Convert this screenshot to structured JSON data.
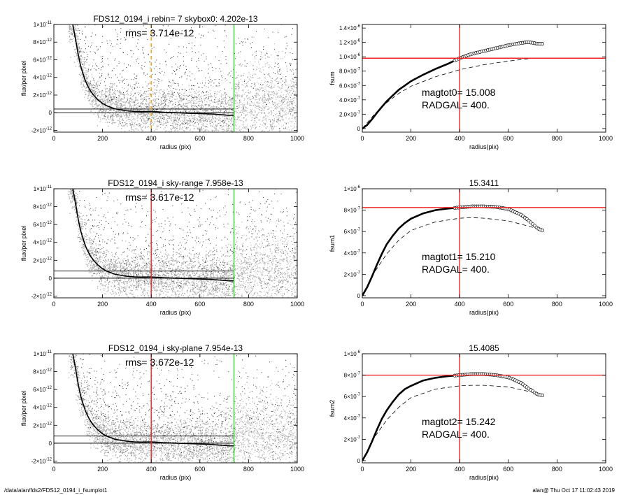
{
  "footer": {
    "path": "/data/alan/fds2/FDS12_0194_i_fsumplot1",
    "stamp": "alan@  Thu Oct 17 11:02:43 2019"
  },
  "chart_data": [
    {
      "type": "scatter",
      "title": "FDS12_0194_i rebin= 7    skybox0:  4.202e-13",
      "annotation": "rms= 3.714e-12",
      "xlabel": "radius (pix)",
      "ylabel": "flux/per pixel",
      "xlim": [
        0,
        1000
      ],
      "ylim": [
        -2.2e-12,
        1e-11
      ],
      "xticks": [
        0,
        200,
        400,
        600,
        800,
        1000
      ],
      "yticks": [
        {
          "v": -2e-12,
          "m": "-2×10",
          "e": "-12"
        },
        {
          "v": 0,
          "m": "0",
          "e": ""
        },
        {
          "v": 2e-12,
          "m": "2×10",
          "e": "-12"
        },
        {
          "v": 4e-12,
          "m": "4×10",
          "e": "-12"
        },
        {
          "v": 6e-12,
          "m": "6×10",
          "e": "-12"
        },
        {
          "v": 8e-12,
          "m": "8×10",
          "e": "-12"
        },
        {
          "v": 1e-11,
          "m": "1×10",
          "e": "-11"
        }
      ],
      "hlines": [
        0,
        4.2e-13
      ],
      "vlines": [
        {
          "x": 400,
          "color": "#ff9900",
          "style": "dashed"
        },
        {
          "x": 740,
          "color": "#33cc33",
          "style": "solid"
        }
      ],
      "profile": {
        "x": [
          78,
          90,
          100,
          110,
          120,
          130,
          140,
          150,
          160,
          170,
          180,
          200,
          220,
          250,
          280,
          300,
          330,
          360,
          400,
          450,
          500,
          550,
          600,
          650,
          700,
          720,
          740
        ],
        "y": [
          1e-11,
          8.2e-12,
          6.6e-12,
          5.3e-12,
          4.4e-12,
          3.6e-12,
          3e-12,
          2.5e-12,
          2.1e-12,
          1.8e-12,
          1.5e-12,
          1.05e-12,
          7.5e-13,
          4.5e-13,
          3e-13,
          2.2e-13,
          1.5e-13,
          1.2e-13,
          1.5e-13,
          5e-14,
          0,
          -5e-14,
          -1e-13,
          -1.5e-13,
          -2.5e-13,
          -3e-13,
          -3e-13
        ]
      }
    },
    {
      "type": "line",
      "title": "",
      "annotation": [
        "magtot0=  15.008",
        "RADGAL=    400."
      ],
      "xlabel": "radius(pix)",
      "ylabel": "fsum",
      "xlim": [
        0,
        1000
      ],
      "ylim": [
        -5e-08,
        1.45e-06
      ],
      "xticks": [
        0,
        200,
        400,
        600,
        800,
        1000
      ],
      "yticks": [
        {
          "v": 0,
          "m": "0",
          "e": ""
        },
        {
          "v": 2e-07,
          "m": "2.0×10",
          "e": "-7"
        },
        {
          "v": 4e-07,
          "m": "4.0×10",
          "e": "-7"
        },
        {
          "v": 6e-07,
          "m": "6.0×10",
          "e": "-7"
        },
        {
          "v": 8e-07,
          "m": "8.0×10",
          "e": "-7"
        },
        {
          "v": 1e-06,
          "m": "1.0×10",
          "e": "-6"
        },
        {
          "v": 1.2e-06,
          "m": "1.2×10",
          "e": "-6"
        },
        {
          "v": 1.4e-06,
          "m": "1.4×10",
          "e": "-6"
        }
      ],
      "cross": {
        "x": 400,
        "y": 9.8e-07
      },
      "curve": {
        "x": [
          0,
          20,
          40,
          60,
          80,
          100,
          125,
          150,
          175,
          200,
          250,
          300,
          350,
          400,
          450,
          500,
          550,
          600,
          650,
          680,
          700,
          720,
          740
        ],
        "y": [
          0,
          5e-08,
          1.3e-07,
          2.2e-07,
          3e-07,
          3.8e-07,
          4.6e-07,
          5.4e-07,
          6e-07,
          6.6e-07,
          7.5e-07,
          8.3e-07,
          9e-07,
          9.8e-07,
          1.04e-06,
          1.08e-06,
          1.12e-06,
          1.16e-06,
          1.19e-06,
          1.205e-06,
          1.195e-06,
          1.18e-06,
          1.18e-06
        ]
      },
      "dashed": {
        "x": [
          0,
          50,
          100,
          150,
          200,
          300,
          400,
          500,
          600,
          700,
          740
        ],
        "y": [
          0,
          2e-07,
          3.6e-07,
          4.9e-07,
          5.9e-07,
          7.2e-07,
          8.2e-07,
          8.9e-07,
          9.4e-07,
          9.8e-07,
          9.8e-07
        ]
      }
    },
    {
      "type": "scatter",
      "title": "FDS12_0194_i sky-range  7.958e-13",
      "annotation": "rms= 3.617e-12",
      "xlabel": "radius (pix)",
      "ylabel": "flux/per pixel",
      "xlim": [
        0,
        1000
      ],
      "ylim": [
        -2.2e-12,
        1e-11
      ],
      "xticks": [
        0,
        200,
        400,
        600,
        800,
        1000
      ],
      "yticks": [
        {
          "v": -2e-12,
          "m": "-2×10",
          "e": "-12"
        },
        {
          "v": 0,
          "m": "0",
          "e": ""
        },
        {
          "v": 2e-12,
          "m": "2×10",
          "e": "-12"
        },
        {
          "v": 4e-12,
          "m": "4×10",
          "e": "-12"
        },
        {
          "v": 6e-12,
          "m": "6×10",
          "e": "-12"
        },
        {
          "v": 8e-12,
          "m": "8×10",
          "e": "-12"
        },
        {
          "v": 1e-11,
          "m": "1×10",
          "e": "-11"
        }
      ],
      "hlines": [
        0,
        7.958e-13
      ],
      "vlines": [
        {
          "x": 400,
          "color": "#ee2222",
          "style": "solid"
        },
        {
          "x": 740,
          "color": "#33cc33",
          "style": "solid"
        }
      ],
      "profile": {
        "x": [
          78,
          90,
          100,
          110,
          120,
          130,
          140,
          150,
          160,
          170,
          180,
          200,
          220,
          250,
          280,
          300,
          330,
          360,
          400,
          450,
          500,
          550,
          600,
          650,
          700,
          720,
          740
        ],
        "y": [
          1e-11,
          8.2e-12,
          6.6e-12,
          5.3e-12,
          4.4e-12,
          3.6e-12,
          3e-12,
          2.5e-12,
          2.1e-12,
          1.8e-12,
          1.5e-12,
          1.05e-12,
          7.5e-13,
          4.5e-13,
          3e-13,
          2.2e-13,
          1.5e-13,
          1.2e-13,
          1.5e-13,
          5e-14,
          0,
          -5e-14,
          -1e-13,
          -1.5e-13,
          -2.5e-13,
          -3e-13,
          -3e-13
        ]
      }
    },
    {
      "type": "line",
      "title": "15.3411",
      "annotation": [
        "magtot1=  15.210",
        "RADGAL=    400."
      ],
      "xlabel": "radius(pix)",
      "ylabel": "fsum1",
      "xlim": [
        0,
        1000
      ],
      "ylim": [
        -2e-08,
        1e-06
      ],
      "xticks": [
        0,
        200,
        400,
        600,
        800,
        1000
      ],
      "yticks": [
        {
          "v": 0,
          "m": "0",
          "e": ""
        },
        {
          "v": 2e-07,
          "m": "2×10",
          "e": "-7"
        },
        {
          "v": 4e-07,
          "m": "4×10",
          "e": "-7"
        },
        {
          "v": 6e-07,
          "m": "6×10",
          "e": "-7"
        },
        {
          "v": 8e-07,
          "m": "8×10",
          "e": "-7"
        },
        {
          "v": 1e-06,
          "m": "1×10",
          "e": "-6"
        }
      ],
      "cross": {
        "x": 400,
        "y": 8.25e-07
      },
      "curve": {
        "x": [
          0,
          20,
          40,
          60,
          80,
          100,
          125,
          150,
          175,
          200,
          250,
          300,
          350,
          400,
          450,
          500,
          550,
          600,
          650,
          680,
          700,
          720,
          740
        ],
        "y": [
          0,
          8e-08,
          1.8e-07,
          2.9e-07,
          3.9e-07,
          4.8e-07,
          5.6e-07,
          6.3e-07,
          6.8e-07,
          7.2e-07,
          7.7e-07,
          8e-07,
          8.15e-07,
          8.25e-07,
          8.35e-07,
          8.35e-07,
          8.3e-07,
          8.1e-07,
          7.6e-07,
          7.1e-07,
          6.7e-07,
          6.3e-07,
          6.1e-07
        ]
      },
      "dashed": {
        "x": [
          0,
          50,
          100,
          150,
          200,
          300,
          400,
          450,
          500,
          600,
          700,
          740
        ],
        "y": [
          0,
          2.2e-07,
          3.9e-07,
          5.2e-07,
          6.1e-07,
          6.9e-07,
          7.25e-07,
          7.3e-07,
          7.25e-07,
          7e-07,
          6.4e-07,
          6.1e-07
        ]
      }
    },
    {
      "type": "scatter",
      "title": "FDS12_0194_i sky-plane  7.954e-13",
      "annotation": "rms= 3.672e-12",
      "xlabel": "radius (pix)",
      "ylabel": "flux/per pixel",
      "xlim": [
        0,
        1000
      ],
      "ylim": [
        -2.2e-12,
        1e-11
      ],
      "xticks": [
        0,
        200,
        400,
        600,
        800,
        1000
      ],
      "yticks": [
        {
          "v": -2e-12,
          "m": "-2×10",
          "e": "-12"
        },
        {
          "v": 0,
          "m": "0",
          "e": ""
        },
        {
          "v": 2e-12,
          "m": "2×10",
          "e": "-12"
        },
        {
          "v": 4e-12,
          "m": "4×10",
          "e": "-12"
        },
        {
          "v": 6e-12,
          "m": "6×10",
          "e": "-12"
        },
        {
          "v": 8e-12,
          "m": "8×10",
          "e": "-12"
        },
        {
          "v": 1e-11,
          "m": "1×10",
          "e": "-11"
        }
      ],
      "hlines": [
        0,
        7.954e-13
      ],
      "vlines": [
        {
          "x": 400,
          "color": "#ee2222",
          "style": "solid"
        },
        {
          "x": 740,
          "color": "#33cc33",
          "style": "solid"
        }
      ],
      "profile": {
        "x": [
          78,
          90,
          100,
          110,
          120,
          130,
          140,
          150,
          160,
          170,
          180,
          200,
          220,
          250,
          280,
          300,
          330,
          360,
          400,
          450,
          500,
          550,
          600,
          650,
          700,
          720,
          740
        ],
        "y": [
          1e-11,
          8.2e-12,
          6.6e-12,
          5.3e-12,
          4.4e-12,
          3.6e-12,
          3e-12,
          2.5e-12,
          2.1e-12,
          1.8e-12,
          1.5e-12,
          1.05e-12,
          7.5e-13,
          4.5e-13,
          3e-13,
          2.2e-13,
          1.5e-13,
          1.2e-13,
          1.5e-13,
          5e-14,
          0,
          -5e-14,
          -1e-13,
          -1.5e-13,
          -2.5e-13,
          -3e-13,
          -3e-13
        ]
      }
    },
    {
      "type": "line",
      "title": "15.4085",
      "annotation": [
        "magtot2=  15.242",
        "RADGAL=    400."
      ],
      "xlabel": "radius(pix)",
      "ylabel": "fsum2",
      "xlim": [
        0,
        1000
      ],
      "ylim": [
        -2e-08,
        1e-06
      ],
      "xticks": [
        0,
        200,
        400,
        600,
        800,
        1000
      ],
      "yticks": [
        {
          "v": 0,
          "m": "0",
          "e": ""
        },
        {
          "v": 2e-07,
          "m": "2×10",
          "e": "-7"
        },
        {
          "v": 4e-07,
          "m": "4×10",
          "e": "-7"
        },
        {
          "v": 6e-07,
          "m": "6×10",
          "e": "-7"
        },
        {
          "v": 8e-07,
          "m": "8×10",
          "e": "-7"
        },
        {
          "v": 1e-06,
          "m": "1×10",
          "e": "-6"
        }
      ],
      "cross": {
        "x": 400,
        "y": 8e-07
      },
      "curve": {
        "x": [
          0,
          20,
          40,
          60,
          80,
          100,
          125,
          150,
          175,
          200,
          250,
          300,
          350,
          400,
          450,
          500,
          550,
          600,
          650,
          680,
          700,
          720,
          740
        ],
        "y": [
          0,
          8e-08,
          1.8e-07,
          2.9e-07,
          3.9e-07,
          4.7e-07,
          5.5e-07,
          6.2e-07,
          6.7e-07,
          7e-07,
          7.5e-07,
          7.75e-07,
          7.9e-07,
          8e-07,
          8.1e-07,
          8.1e-07,
          8e-07,
          7.8e-07,
          7.3e-07,
          6.8e-07,
          6.5e-07,
          6.2e-07,
          6.1e-07
        ]
      },
      "dashed": {
        "x": [
          0,
          50,
          100,
          150,
          200,
          300,
          400,
          450,
          500,
          600,
          700,
          740
        ],
        "y": [
          0,
          2.2e-07,
          3.8e-07,
          5e-07,
          5.9e-07,
          6.7e-07,
          7e-07,
          7.05e-07,
          7.05e-07,
          6.9e-07,
          6.4e-07,
          6.1e-07
        ]
      }
    }
  ]
}
